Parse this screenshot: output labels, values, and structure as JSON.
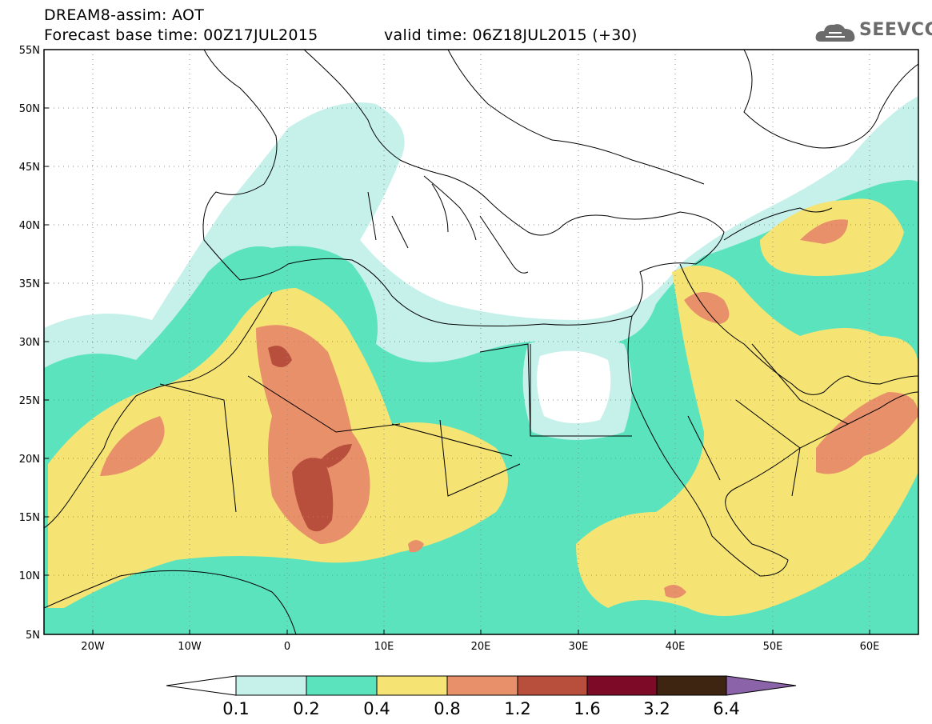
{
  "header": {
    "line1": "DREAM8-assim: AOT",
    "line2": "Forecast base time: 00Z17JUL2015",
    "line3": "valid time: 06Z18JUL2015 (+30)"
  },
  "logo": {
    "text": "SEEVCCC",
    "icon": "cloud-icon"
  },
  "map": {
    "lat_labels": [
      "55N",
      "50N",
      "45N",
      "40N",
      "35N",
      "30N",
      "25N",
      "20N",
      "15N",
      "10N",
      "5N"
    ],
    "lon_labels": [
      "20W",
      "10W",
      "0",
      "10E",
      "20E",
      "30E",
      "40E",
      "50E",
      "60E"
    ],
    "lat_range": [
      5,
      55
    ],
    "lon_range": [
      -25,
      65
    ],
    "grid": "dotted"
  },
  "colorbar": {
    "levels": [
      "0.1",
      "0.2",
      "0.4",
      "0.8",
      "1.2",
      "1.6",
      "3.2",
      "6.4"
    ],
    "colors": [
      "#ffffff",
      "#c6f0ea",
      "#5be3bd",
      "#f5e474",
      "#e8906a",
      "#b84e3c",
      "#7d0a26",
      "#3e2512",
      "#8a63a8"
    ]
  }
}
